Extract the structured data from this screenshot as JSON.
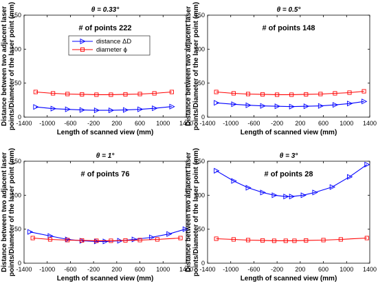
{
  "figure": {
    "ylabel_line1": "Distance between two adjacent laser",
    "ylabel_line2": "points/Diameter of the laser point (mm)"
  },
  "chart_data": [
    {
      "type": "line",
      "title": "θ = 0.33°",
      "annotation": "# of points  222",
      "xlabel": "Length of scanned view (mm)",
      "xlim": [
        -1400,
        1400
      ],
      "ylim": [
        0,
        150
      ],
      "xticks": [
        -1400,
        -1000,
        -600,
        -200,
        200,
        600,
        1000,
        1400
      ],
      "yticks": [
        0,
        50,
        100,
        150
      ],
      "legend": "top-center",
      "series": [
        {
          "name": "distance ΔD",
          "color": "#0000ff",
          "marker": "triangle-right",
          "x": [
            -1200,
            -900,
            -650,
            -400,
            -150,
            100,
            350,
            600,
            850,
            1150
          ],
          "y": [
            15,
            12.5,
            11.5,
            10.5,
            10,
            10,
            10.5,
            11.5,
            13,
            15.5
          ]
        },
        {
          "name": "diameter ϕ",
          "color": "#ff0000",
          "marker": "square",
          "x": [
            -1200,
            -900,
            -650,
            -400,
            -150,
            100,
            350,
            600,
            850,
            1150
          ],
          "y": [
            37,
            35,
            34,
            33.5,
            33,
            33,
            33.5,
            34,
            35,
            37
          ]
        }
      ]
    },
    {
      "type": "line",
      "title": "θ = 0.5°",
      "annotation": "# of points  148",
      "xlabel": "Length of scanned view (mm)",
      "xlim": [
        -1400,
        1400
      ],
      "ylim": [
        0,
        150
      ],
      "xticks": [
        -1400,
        -1000,
        -600,
        -200,
        200,
        600,
        1000,
        1400
      ],
      "yticks": [
        0,
        50,
        100,
        150
      ],
      "series": [
        {
          "color": "#0000ff",
          "marker": "triangle-right",
          "x": [
            -1250,
            -950,
            -700,
            -450,
            -200,
            50,
            300,
            550,
            800,
            1050,
            1300
          ],
          "y": [
            21,
            19,
            17.5,
            16.5,
            16,
            15.5,
            16,
            16.5,
            18,
            20,
            23
          ]
        },
        {
          "color": "#ff0000",
          "marker": "square",
          "x": [
            -1250,
            -950,
            -700,
            -450,
            -200,
            50,
            300,
            550,
            800,
            1050,
            1300
          ],
          "y": [
            37,
            35,
            34,
            33.5,
            33,
            33,
            33.5,
            34,
            35,
            36,
            38
          ]
        }
      ]
    },
    {
      "type": "line",
      "title": "θ = 1°",
      "annotation": "# of points  76",
      "xlabel": "Length of scanned view (mm)",
      "xlim": [
        -1400,
        1400
      ],
      "ylim": [
        0,
        150
      ],
      "xticks": [
        -1400,
        -1000,
        -600,
        -200,
        200,
        600,
        1000,
        1400
      ],
      "yticks": [
        0,
        50,
        100,
        150
      ],
      "series": [
        {
          "color": "#0000ff",
          "marker": "triangle-right",
          "x": [
            -1300,
            -950,
            -650,
            -400,
            -150,
            0,
            250,
            500,
            800,
            1100,
            1380
          ],
          "y": [
            46,
            40,
            35,
            33,
            32,
            32,
            33,
            35,
            38,
            43,
            50
          ]
        },
        {
          "color": "#ff0000",
          "marker": "square",
          "x": [
            -1250,
            -950,
            -650,
            -400,
            -150,
            100,
            350,
            600,
            900,
            1300
          ],
          "y": [
            37,
            35,
            34,
            33.5,
            33,
            33,
            33.5,
            34,
            35,
            37
          ]
        }
      ]
    },
    {
      "type": "line",
      "title": "θ = 3°",
      "annotation": "# of points  28",
      "xlabel": "Length of scanned view (mm)",
      "xlim": [
        -1400,
        1400
      ],
      "ylim": [
        0,
        150
      ],
      "xticks": [
        -1400,
        -1000,
        -600,
        -200,
        200,
        600,
        1000,
        1400
      ],
      "yticks": [
        0,
        50,
        100,
        150
      ],
      "series": [
        {
          "color": "#0000ff",
          "marker": "triangle-right",
          "x": [
            -1250,
            -950,
            -700,
            -450,
            -250,
            -50,
            50,
            250,
            450,
            750,
            1050,
            1350
          ],
          "y": [
            136,
            121,
            111,
            104,
            100,
            98,
            98,
            100,
            104,
            112,
            127,
            145
          ]
        },
        {
          "color": "#ff0000",
          "marker": "square",
          "x": [
            -1250,
            -950,
            -700,
            -450,
            -250,
            -50,
            100,
            300,
            600,
            900,
            1350
          ],
          "y": [
            36,
            35,
            34,
            33.5,
            33,
            33,
            33,
            33.5,
            34,
            35,
            37
          ]
        }
      ]
    }
  ]
}
